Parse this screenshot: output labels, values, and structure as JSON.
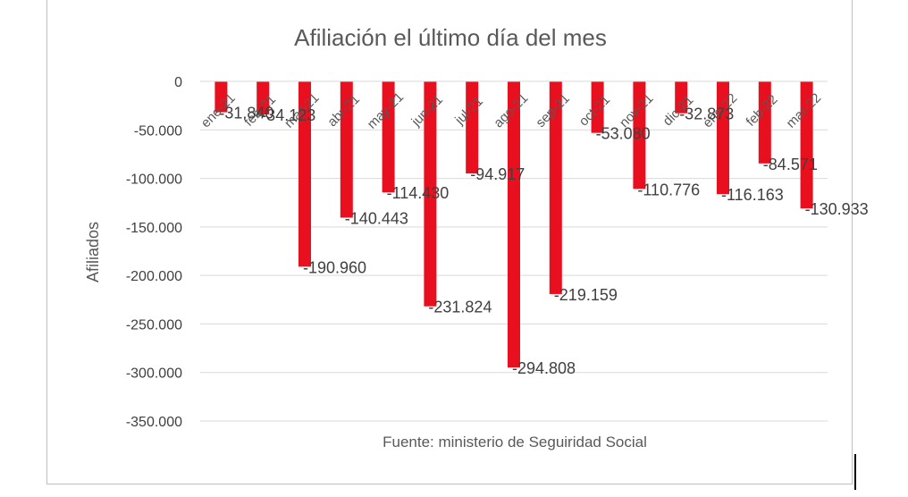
{
  "chart_data": {
    "type": "bar",
    "title": "Afiliación el último día del mes",
    "ylabel": "Afiliados",
    "xlabel": "",
    "source": "Fuente: ministerio de Seguiridad Social",
    "ylim": [
      -350000,
      0
    ],
    "ytick_values": [
      0,
      -50000,
      -100000,
      -150000,
      -200000,
      -250000,
      -300000,
      -350000
    ],
    "ytick_labels": [
      "0",
      "-50.000",
      "-100.000",
      "-150.000",
      "-200.000",
      "-250.000",
      "-300.000",
      "-350.000"
    ],
    "categories": [
      "ene-21",
      "feb-21",
      "mar-21",
      "abr-21",
      "may-21",
      "jun-21",
      "jul-21",
      "ago-21",
      "sep-21",
      "oct-21",
      "nov-21",
      "dic-21",
      "ene-22",
      "feb-22",
      "mar-22"
    ],
    "values": [
      -31840,
      -34123,
      -190960,
      -140443,
      -114430,
      -231824,
      -94917,
      -294808,
      -219159,
      -53080,
      -110776,
      -32873,
      -116163,
      -84571,
      -130933
    ],
    "data_labels": [
      "-31.840",
      "-34.123",
      "-190.960",
      "-140.443",
      "-114.430",
      "-231.824",
      "-94.917",
      "-294.808",
      "-219.159",
      "-53.080",
      "-110.776",
      "-32.873",
      "-116.163",
      "-84.571",
      "-130.933"
    ],
    "bar_color": "#e8101e",
    "grid": true,
    "legend": "none"
  }
}
